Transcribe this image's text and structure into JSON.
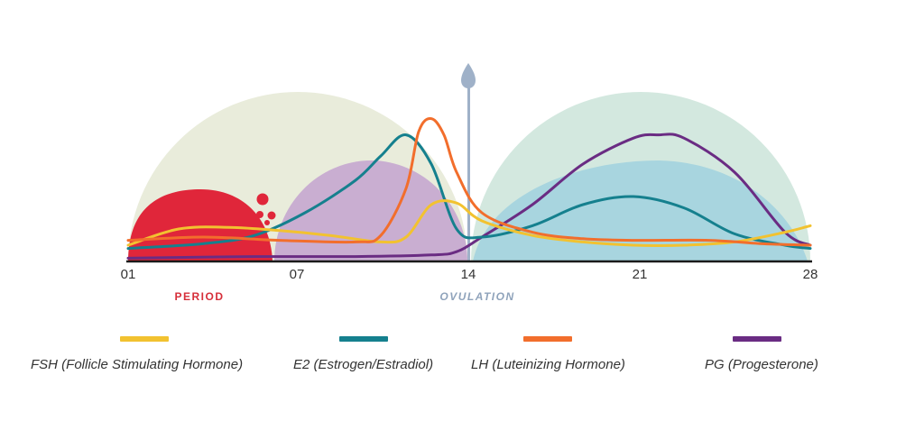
{
  "chart_data": {
    "type": "line",
    "x_ticks": [
      "01",
      "07",
      "14",
      "21",
      "28"
    ],
    "xlim": [
      1,
      28
    ],
    "phases": [
      {
        "label": "PERIOD",
        "color": "#d62f3a"
      },
      {
        "label": "OVULATION",
        "color": "#8fa3bb"
      }
    ],
    "ovulation_marker_color": "#9fb1c8",
    "series": [
      {
        "name": "FSH (Follicle Stimulating Hormone)",
        "color": "#f2c230",
        "x": [
          1,
          3,
          5,
          7,
          9,
          11,
          12,
          13,
          14,
          15,
          17,
          19,
          21,
          23,
          25,
          27,
          28
        ],
        "y": [
          0.1,
          0.2,
          0.21,
          0.19,
          0.16,
          0.12,
          0.15,
          0.35,
          0.36,
          0.25,
          0.16,
          0.12,
          0.1,
          0.1,
          0.12,
          0.18,
          0.22
        ]
      },
      {
        "name": "E2 (Estrogen/Estradiol)",
        "color": "#15808e",
        "x": [
          1,
          4,
          6,
          8,
          10,
          11,
          12,
          13,
          14,
          15,
          17,
          19,
          21,
          23,
          25,
          27,
          28
        ],
        "y": [
          0.08,
          0.11,
          0.16,
          0.3,
          0.5,
          0.65,
          0.78,
          0.6,
          0.2,
          0.15,
          0.22,
          0.35,
          0.4,
          0.33,
          0.17,
          0.1,
          0.08
        ]
      },
      {
        "name": "LH (Luteinizing Hormone)",
        "color": "#f26e2c",
        "x": [
          1,
          4,
          7,
          10,
          11,
          12,
          12.5,
          13,
          13.5,
          14,
          15,
          17,
          19,
          21,
          24,
          26,
          28
        ],
        "y": [
          0.13,
          0.15,
          0.13,
          0.12,
          0.16,
          0.45,
          0.8,
          0.88,
          0.78,
          0.55,
          0.3,
          0.18,
          0.14,
          0.13,
          0.13,
          0.11,
          0.1
        ]
      },
      {
        "name": "PG (Progesterone)",
        "color": "#6a2c83",
        "x": [
          1,
          6,
          10,
          13,
          14,
          15,
          17,
          19,
          21,
          22,
          23,
          25,
          27,
          28
        ],
        "y": [
          0.02,
          0.03,
          0.03,
          0.04,
          0.06,
          0.15,
          0.35,
          0.6,
          0.76,
          0.78,
          0.76,
          0.55,
          0.18,
          0.1
        ]
      }
    ]
  }
}
